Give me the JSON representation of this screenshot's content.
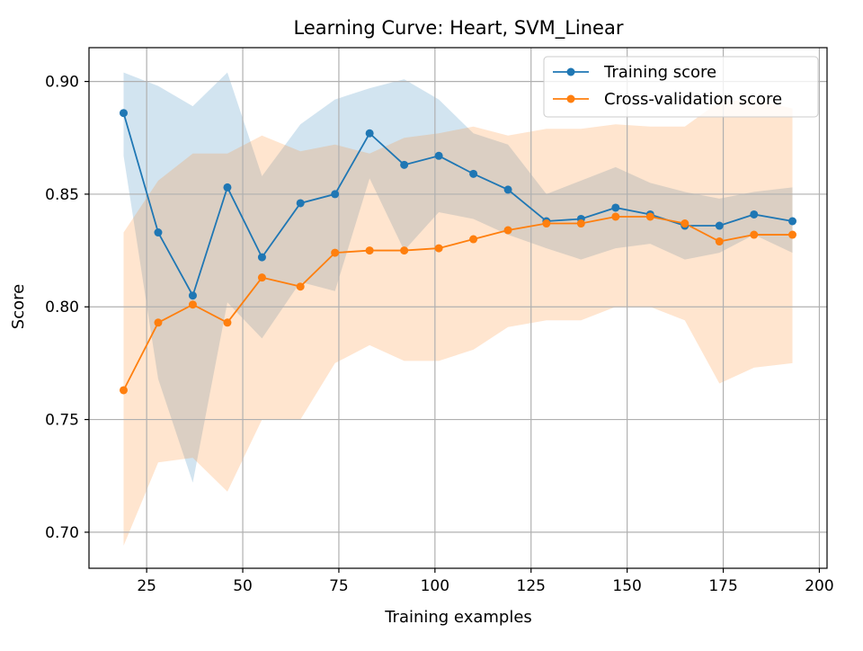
{
  "chart_data": {
    "type": "line",
    "title": "Learning Curve: Heart, SVM_Linear",
    "xlabel": "Training examples",
    "ylabel": "Score",
    "xlim": [
      10,
      202
    ],
    "ylim": [
      0.684,
      0.915
    ],
    "xticks": [
      25,
      50,
      75,
      100,
      125,
      150,
      175,
      200
    ],
    "yticks": [
      0.7,
      0.75,
      0.8,
      0.85,
      0.9
    ],
    "grid": true,
    "legend_position": "top-right",
    "x": [
      19,
      28,
      37,
      46,
      55,
      65,
      74,
      83,
      92,
      101,
      110,
      119,
      129,
      138,
      147,
      156,
      165,
      174,
      183,
      193
    ],
    "series": [
      {
        "name": "Training score",
        "color": "#1f77b4",
        "values": [
          0.886,
          0.833,
          0.805,
          0.853,
          0.822,
          0.846,
          0.85,
          0.877,
          0.863,
          0.867,
          0.859,
          0.852,
          0.838,
          0.839,
          0.844,
          0.841,
          0.836,
          0.836,
          0.841,
          0.838
        ],
        "band_upper": [
          0.904,
          0.898,
          0.889,
          0.904,
          0.858,
          0.881,
          0.892,
          0.897,
          0.901,
          0.892,
          0.877,
          0.872,
          0.85,
          0.856,
          0.862,
          0.855,
          0.851,
          0.848,
          0.851,
          0.853
        ],
        "band_lower": [
          0.867,
          0.768,
          0.722,
          0.802,
          0.786,
          0.811,
          0.807,
          0.857,
          0.825,
          0.842,
          0.839,
          0.832,
          0.826,
          0.821,
          0.826,
          0.828,
          0.821,
          0.824,
          0.832,
          0.824
        ]
      },
      {
        "name": "Cross-validation score",
        "color": "#ff7f0e",
        "values": [
          0.763,
          0.793,
          0.801,
          0.793,
          0.813,
          0.809,
          0.824,
          0.825,
          0.825,
          0.826,
          0.83,
          0.834,
          0.837,
          0.837,
          0.84,
          0.84,
          0.837,
          0.829,
          0.832,
          0.832
        ],
        "band_upper": [
          0.833,
          0.856,
          0.868,
          0.868,
          0.876,
          0.869,
          0.872,
          0.868,
          0.875,
          0.877,
          0.88,
          0.876,
          0.879,
          0.879,
          0.881,
          0.88,
          0.88,
          0.891,
          0.892,
          0.888
        ],
        "band_lower": [
          0.694,
          0.731,
          0.733,
          0.718,
          0.75,
          0.75,
          0.775,
          0.783,
          0.776,
          0.776,
          0.781,
          0.791,
          0.794,
          0.794,
          0.8,
          0.8,
          0.794,
          0.766,
          0.773,
          0.775
        ]
      }
    ]
  }
}
